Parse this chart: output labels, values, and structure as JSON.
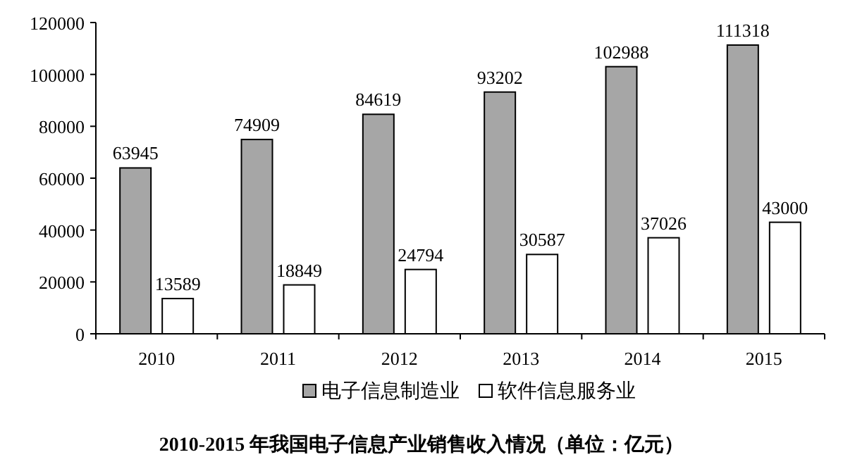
{
  "chart_data": {
    "type": "bar",
    "title": "2010-2015 年我国电子信息产业销售收入情况（单位：亿元）",
    "categories": [
      "2010",
      "2011",
      "2012",
      "2013",
      "2014",
      "2015"
    ],
    "series": [
      {
        "name": "电子信息制造业",
        "color": "#a6a6a6",
        "values": [
          63945,
          74909,
          84619,
          93202,
          102988,
          111318
        ]
      },
      {
        "name": "软件信息服务业",
        "color": "#ffffff",
        "values": [
          13589,
          18849,
          24794,
          30587,
          37026,
          43000
        ]
      }
    ],
    "ylim": [
      0,
      120000
    ],
    "yticks": [
      0,
      20000,
      40000,
      60000,
      80000,
      100000,
      120000
    ],
    "data_labels": true,
    "legend": "bottom"
  }
}
